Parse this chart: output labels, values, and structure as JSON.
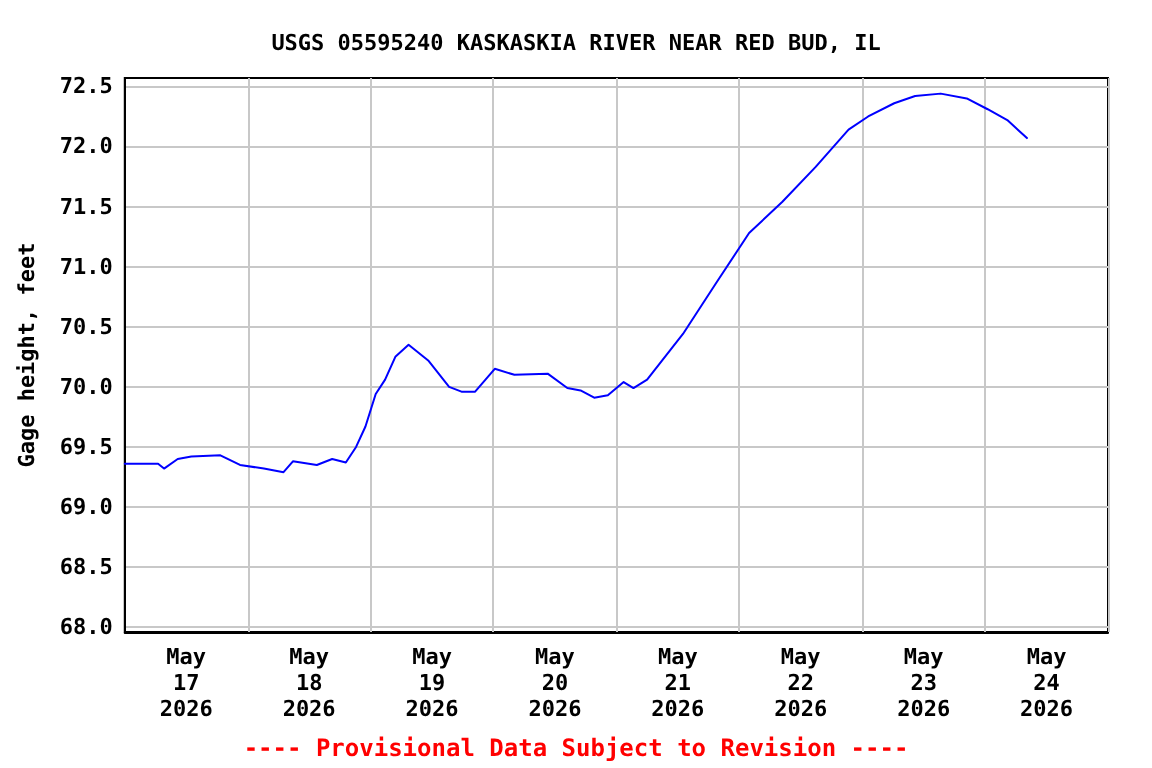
{
  "chart_data": {
    "type": "line",
    "title": "USGS 05595240 KASKASKIA RIVER NEAR RED BUD, IL",
    "ylabel": "Gage height, feet",
    "annotations": [
      "---- Provisional Data Subject to Revision ----"
    ],
    "x": [
      "2026-05-17T00:00",
      "2026-05-17T06:30",
      "2026-05-17T07:40",
      "2026-05-17T10:20",
      "2026-05-17T13:00",
      "2026-05-17T18:40",
      "2026-05-17T22:30",
      "2026-05-18T03:10",
      "2026-05-18T07:00",
      "2026-05-18T08:50",
      "2026-05-18T13:30",
      "2026-05-18T16:30",
      "2026-05-18T19:10",
      "2026-05-18T21:10",
      "2026-05-18T23:00",
      "2026-05-19T01:00",
      "2026-05-19T02:50",
      "2026-05-19T04:50",
      "2026-05-19T07:25",
      "2026-05-19T11:15",
      "2026-05-19T15:20",
      "2026-05-19T17:45",
      "2026-05-19T20:25",
      "2026-05-20T00:15",
      "2026-05-20T04:05",
      "2026-05-20T10:35",
      "2026-05-20T14:25",
      "2026-05-20T17:00",
      "2026-05-20T19:40",
      "2026-05-20T22:20",
      "2026-05-21T01:25",
      "2026-05-21T03:20",
      "2026-05-21T06:00",
      "2026-05-21T13:00",
      "2026-05-21T19:25",
      "2026-05-22T01:55",
      "2026-05-22T08:25",
      "2026-05-22T14:55",
      "2026-05-22T21:20",
      "2026-05-23T01:10",
      "2026-05-23T06:15",
      "2026-05-23T10:20",
      "2026-05-23T15:20",
      "2026-05-23T20:25",
      "2026-05-24T00:30",
      "2026-05-24T04:20",
      "2026-05-24T08:10"
    ],
    "series": [
      {
        "color": "#0000ff",
        "values": [
          69.36,
          69.36,
          69.32,
          69.4,
          69.42,
          69.43,
          69.35,
          69.32,
          69.29,
          69.38,
          69.35,
          69.4,
          69.37,
          69.5,
          69.67,
          69.94,
          70.06,
          70.25,
          70.35,
          70.22,
          70.0,
          69.96,
          69.96,
          70.15,
          70.1,
          70.11,
          69.99,
          69.97,
          69.91,
          69.93,
          70.04,
          69.99,
          70.06,
          70.44,
          70.86,
          71.28,
          71.54,
          71.83,
          72.14,
          72.25,
          72.36,
          72.42,
          72.44,
          72.4,
          72.31,
          72.22,
          72.07
        ]
      }
    ],
    "xlim": [
      "2026-05-17T00:00",
      "2026-05-25T00:00"
    ],
    "xticks": [
      {
        "value": "2026-05-17T00:00",
        "label": null
      },
      {
        "value": "2026-05-18T00:00",
        "label": null
      },
      {
        "value": "2026-05-19T00:00",
        "label": null
      },
      {
        "value": "2026-05-20T00:00",
        "label": null
      },
      {
        "value": "2026-05-21T00:00",
        "label": null
      },
      {
        "value": "2026-05-22T00:00",
        "label": null
      },
      {
        "value": "2026-05-23T00:00",
        "label": null
      },
      {
        "value": "2026-05-24T00:00",
        "label": null
      },
      {
        "value": "2026-05-25T00:00",
        "label": null
      },
      {
        "value": "2026-05-17T12:00",
        "label": "May\n17\n2026"
      },
      {
        "value": "2026-05-18T12:00",
        "label": "May\n18\n2026"
      },
      {
        "value": "2026-05-19T12:00",
        "label": "May\n19\n2026"
      },
      {
        "value": "2026-05-20T12:00",
        "label": "May\n20\n2026"
      },
      {
        "value": "2026-05-21T12:00",
        "label": "May\n21\n2026"
      },
      {
        "value": "2026-05-22T12:00",
        "label": "May\n22\n2026"
      },
      {
        "value": "2026-05-23T12:00",
        "label": "May\n23\n2026"
      },
      {
        "value": "2026-05-24T12:00",
        "label": "May\n24\n2026"
      }
    ],
    "ylim": [
      67.96,
      72.57
    ],
    "yticks": [
      {
        "value": 68,
        "label": "68.0"
      },
      {
        "value": 68.5,
        "label": "68.5"
      },
      {
        "value": 69,
        "label": "69.0"
      },
      {
        "value": 69.5,
        "label": "69.5"
      },
      {
        "value": 70,
        "label": "70.0"
      },
      {
        "value": 70.5,
        "label": "70.5"
      },
      {
        "value": 71,
        "label": "71.0"
      },
      {
        "value": 71.5,
        "label": "71.5"
      },
      {
        "value": 72,
        "label": "72.0"
      },
      {
        "value": 72.5,
        "label": "72.5"
      }
    ],
    "grid": true,
    "marker": "none",
    "line_style": "solid"
  }
}
